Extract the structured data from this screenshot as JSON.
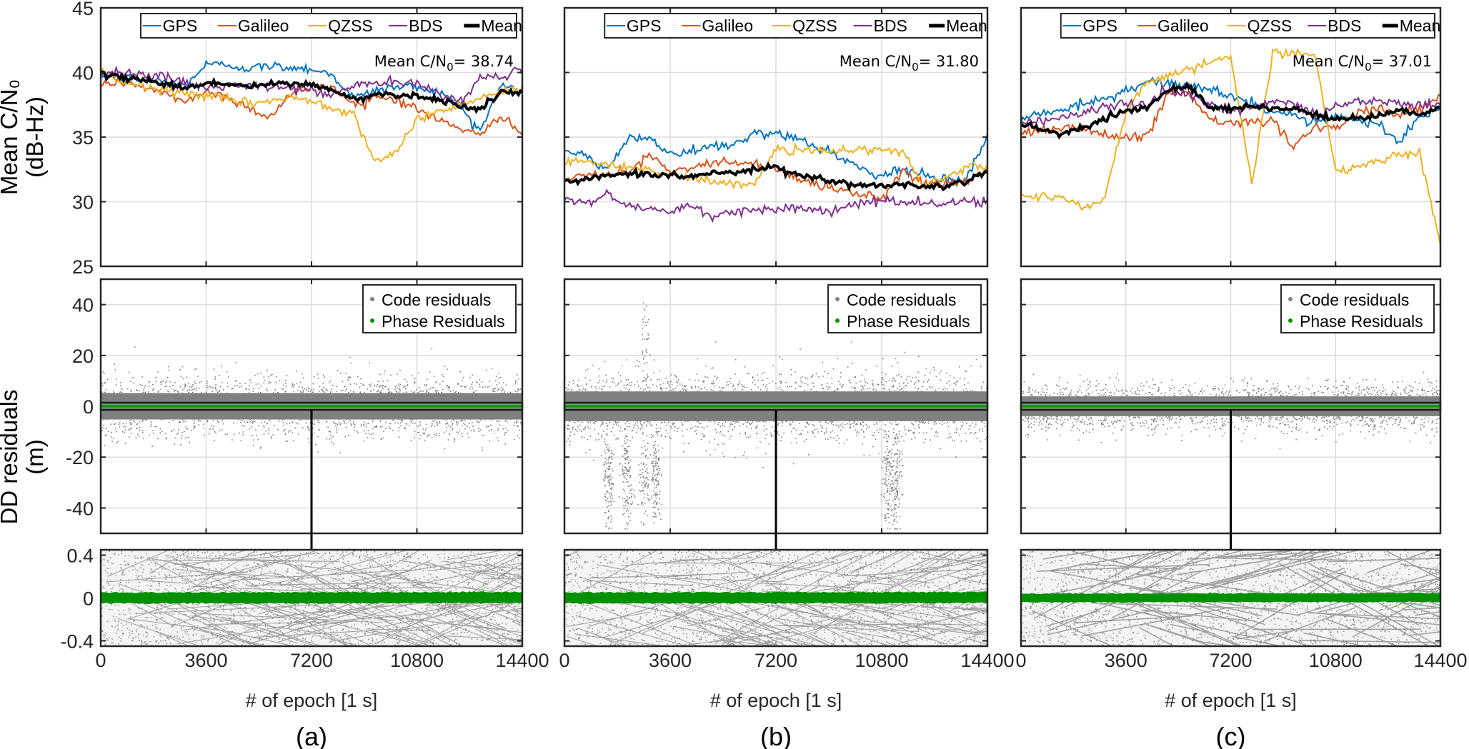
{
  "figure": {
    "ylabel_top": [
      "Mean C/N₀",
      "(dB-Hz)"
    ],
    "ylabel_mid": [
      "DD residuals",
      "(m)"
    ]
  },
  "chart_data": [
    {
      "type": "line",
      "panel": "(a)",
      "title": "",
      "xlabel": "# of epoch [1 s]",
      "ylabel": "Mean C/N0 (dB-Hz)",
      "xlim": [
        0,
        14400
      ],
      "ylim": [
        25,
        45
      ],
      "xticks": [
        "0",
        "3600",
        "7200",
        "10800",
        "14400"
      ],
      "yticks": [
        "25",
        "30",
        "35",
        "40",
        "45"
      ],
      "grid": true,
      "legend": {
        "placement": "top-right",
        "entries": [
          "GPS",
          "Galileo",
          "QZSS",
          "BDS",
          "Mean"
        ]
      },
      "annotation": {
        "prefix": "Mean C/N",
        "sub": "0",
        "suffix": "= 38.74"
      },
      "x": [
        0,
        720,
        1440,
        2160,
        2880,
        3600,
        4320,
        5040,
        5760,
        6480,
        7200,
        7920,
        8640,
        9360,
        10080,
        10800,
        11520,
        12240,
        12960,
        13680,
        14400
      ],
      "series": [
        {
          "name": "GPS",
          "color": "#0072BD",
          "values": [
            39.8,
            39.6,
            39.4,
            39.3,
            39.0,
            40.6,
            40.6,
            40.3,
            40.5,
            40.4,
            40.3,
            39.8,
            38.0,
            38.6,
            38.9,
            38.9,
            38.5,
            37.5,
            35.5,
            39.0,
            38.6
          ]
        },
        {
          "name": "Galileo",
          "color": "#D95319",
          "values": [
            39.0,
            39.3,
            38.9,
            38.3,
            37.8,
            38.5,
            38.1,
            37.3,
            36.5,
            38.3,
            38.9,
            38.9,
            37.5,
            38.2,
            37.9,
            37.2,
            36.3,
            35.8,
            35.0,
            36.8,
            35.2
          ]
        },
        {
          "name": "QZSS",
          "color": "#EDB120",
          "values": [
            39.9,
            39.3,
            38.9,
            38.6,
            38.4,
            38.2,
            37.9,
            37.6,
            37.8,
            38.0,
            37.9,
            37.3,
            36.8,
            33.2,
            33.6,
            36.5,
            36.9,
            37.5,
            38.1,
            38.5,
            38.7
          ]
        },
        {
          "name": "BDS",
          "color": "#7E2F8E",
          "values": [
            40.2,
            40.0,
            39.9,
            39.6,
            39.2,
            38.8,
            39.0,
            38.9,
            38.9,
            38.8,
            38.6,
            38.2,
            39.0,
            39.2,
            39.2,
            39.1,
            38.5,
            37.7,
            39.5,
            39.8,
            40.1
          ]
        },
        {
          "name": "Mean",
          "color": "#000000",
          "values": [
            39.8,
            39.6,
            39.5,
            39.1,
            38.8,
            39.2,
            39.1,
            38.9,
            39.1,
            39.1,
            39.1,
            38.6,
            37.9,
            38.3,
            38.3,
            38.2,
            37.9,
            37.5,
            37.1,
            38.5,
            38.3
          ]
        }
      ]
    },
    {
      "type": "line",
      "panel": "(b)",
      "title": "",
      "xlabel": "# of epoch [1 s]",
      "ylabel": "Mean C/N0 (dB-Hz)",
      "xlim": [
        0,
        14400
      ],
      "ylim": [
        25,
        45
      ],
      "xticks": [
        "0",
        "3600",
        "7200",
        "10800",
        "14400"
      ],
      "yticks": [
        "25",
        "30",
        "35",
        "40",
        "45"
      ],
      "grid": true,
      "legend": {
        "placement": "top-right",
        "entries": [
          "GPS",
          "Galileo",
          "QZSS",
          "BDS",
          "Mean"
        ]
      },
      "annotation": {
        "prefix": "Mean C/N",
        "sub": "0",
        "suffix": "= 31.80"
      },
      "x": [
        0,
        720,
        1440,
        2160,
        2880,
        3600,
        4320,
        5040,
        5760,
        6480,
        7200,
        7920,
        8640,
        9360,
        10080,
        10800,
        11520,
        12240,
        12960,
        13680,
        14400
      ],
      "series": [
        {
          "name": "GPS",
          "color": "#0072BD",
          "values": [
            33.8,
            33.5,
            32.6,
            34.8,
            35.0,
            33.6,
            33.9,
            34.2,
            34.4,
            35.3,
            35.2,
            34.8,
            34.2,
            33.5,
            32.6,
            32.0,
            32.6,
            32.0,
            31.6,
            31.8,
            35.0
          ]
        },
        {
          "name": "Galileo",
          "color": "#D95319",
          "values": [
            31.6,
            31.9,
            32.1,
            32.2,
            33.6,
            32.4,
            32.6,
            33.2,
            33.0,
            32.9,
            32.5,
            31.8,
            31.3,
            31.0,
            30.6,
            30.3,
            32.4,
            31.4,
            31.4,
            31.5,
            32.6
          ]
        },
        {
          "name": "QZSS",
          "color": "#EDB120",
          "values": [
            33.2,
            33.1,
            32.9,
            32.7,
            32.4,
            32.0,
            31.8,
            31.6,
            31.4,
            31.3,
            34.0,
            34.0,
            34.0,
            34.0,
            34.0,
            34.0,
            33.8,
            31.2,
            31.9,
            32.6,
            33.0
          ]
        },
        {
          "name": "BDS",
          "color": "#7E2F8E",
          "values": [
            30.1,
            29.9,
            30.6,
            29.6,
            29.5,
            29.3,
            29.8,
            28.6,
            29.3,
            29.4,
            29.5,
            29.5,
            29.4,
            29.3,
            29.9,
            30.1,
            29.9,
            29.9,
            29.9,
            30.0,
            30.1
          ]
        },
        {
          "name": "Mean",
          "color": "#000000",
          "values": [
            31.6,
            31.7,
            32.0,
            32.1,
            32.2,
            32.0,
            32.0,
            32.2,
            32.3,
            32.6,
            32.6,
            32.1,
            31.8,
            31.5,
            31.3,
            31.2,
            31.4,
            31.2,
            31.3,
            31.6,
            32.4
          ]
        }
      ]
    },
    {
      "type": "line",
      "panel": "(c)",
      "title": "",
      "xlabel": "# of epoch [1 s]",
      "ylabel": "Mean C/N0 (dB-Hz)",
      "xlim": [
        0,
        14400
      ],
      "ylim": [
        25,
        45
      ],
      "xticks": [
        "0",
        "3600",
        "7200",
        "10800",
        "14400"
      ],
      "yticks": [
        "25",
        "30",
        "35",
        "40",
        "45"
      ],
      "grid": true,
      "legend": {
        "placement": "top-right",
        "entries": [
          "GPS",
          "Galileo",
          "QZSS",
          "BDS",
          "Mean"
        ]
      },
      "annotation": {
        "prefix": "Mean C/N",
        "sub": "0",
        "suffix": "= 37.01"
      },
      "x": [
        0,
        720,
        1440,
        2160,
        2880,
        3600,
        4320,
        5040,
        5760,
        6480,
        7200,
        7920,
        8640,
        9360,
        10080,
        10800,
        11520,
        12240,
        12960,
        13680,
        14400
      ],
      "series": [
        {
          "name": "GPS",
          "color": "#0072BD",
          "values": [
            36.4,
            36.9,
            37.2,
            37.5,
            38.0,
            38.6,
            39.3,
            39.2,
            39.0,
            38.7,
            38.2,
            37.6,
            37.0,
            36.7,
            36.2,
            36.5,
            36.4,
            36.0,
            34.5,
            36.5,
            37.2
          ]
        },
        {
          "name": "Galileo",
          "color": "#D95319",
          "values": [
            35.2,
            35.6,
            35.8,
            35.6,
            35.2,
            35.0,
            35.0,
            38.3,
            38.3,
            36.3,
            36.1,
            36.1,
            36.2,
            34.4,
            35.8,
            35.7,
            37.0,
            37.2,
            36.8,
            37.2,
            38.0
          ]
        },
        {
          "name": "QZSS",
          "color": "#EDB120",
          "values": [
            30.4,
            30.4,
            30.5,
            29.5,
            30.2,
            37.0,
            39.2,
            39.8,
            40.3,
            40.8,
            41.2,
            31.4,
            41.5,
            41.5,
            41.5,
            32.3,
            32.7,
            33.2,
            33.6,
            33.8,
            26.8
          ]
        },
        {
          "name": "BDS",
          "color": "#7E2F8E",
          "values": [
            36.2,
            36.3,
            36.6,
            36.9,
            37.4,
            37.6,
            37.5,
            38.7,
            38.4,
            37.6,
            37.0,
            37.2,
            37.8,
            37.6,
            36.6,
            37.4,
            37.7,
            37.7,
            37.6,
            37.5,
            37.4
          ]
        },
        {
          "name": "Mean",
          "color": "#000000",
          "values": [
            36.0,
            35.6,
            35.2,
            35.8,
            36.4,
            37.0,
            37.3,
            38.6,
            38.9,
            37.4,
            37.2,
            37.4,
            37.2,
            37.2,
            36.7,
            36.4,
            36.5,
            36.6,
            37.1,
            36.8,
            37.3
          ]
        }
      ]
    },
    {
      "type": "scatter",
      "panel": "(a)",
      "ylabel": "DD residuals (m)",
      "xlim": [
        0,
        14400
      ],
      "ylim": [
        -50,
        50
      ],
      "yticks": [
        "-40",
        "-20",
        "0",
        "20",
        "40"
      ],
      "grid": true,
      "legend": {
        "placement": "top-right",
        "entries": [
          "Code residuals",
          "Phase Residuals"
        ]
      },
      "series": [
        {
          "name": "Code residuals",
          "color": "#808080",
          "core_spread_m": 8,
          "max_abs_m": 31
        },
        {
          "name": "Phase Residuals",
          "color": "#009000",
          "core_spread_m": 0.05
        }
      ],
      "zoom_window_ylim": [
        -1,
        1
      ]
    },
    {
      "type": "scatter",
      "panel": "(b)",
      "ylabel": "DD residuals (m)",
      "xlim": [
        0,
        14400
      ],
      "ylim": [
        -50,
        50
      ],
      "yticks": [
        "-40",
        "-20",
        "0",
        "20",
        "40"
      ],
      "grid": true,
      "legend": {
        "placement": "top-right",
        "entries": [
          "Code residuals",
          "Phase Residuals"
        ]
      },
      "series": [
        {
          "name": "Code residuals",
          "color": "#808080",
          "core_spread_m": 9,
          "max_abs_m": 48,
          "outlier_bursts_epoch": [
            1500,
            2100,
            2700,
            3100,
            11000,
            11300
          ]
        },
        {
          "name": "Phase Residuals",
          "color": "#009000",
          "core_spread_m": 0.05
        }
      ],
      "zoom_window_ylim": [
        -1,
        1
      ]
    },
    {
      "type": "scatter",
      "panel": "(c)",
      "ylabel": "DD residuals (m)",
      "xlim": [
        0,
        14400
      ],
      "ylim": [
        -50,
        50
      ],
      "yticks": [
        "-40",
        "-20",
        "0",
        "20",
        "40"
      ],
      "grid": true,
      "legend": {
        "placement": "top-right",
        "entries": [
          "Code residuals",
          "Phase Residuals"
        ]
      },
      "series": [
        {
          "name": "Code residuals",
          "color": "#808080",
          "core_spread_m": 6,
          "max_abs_m": 18
        },
        {
          "name": "Phase Residuals",
          "color": "#009000",
          "core_spread_m": 0.04
        }
      ],
      "zoom_window_ylim": [
        -1,
        1
      ]
    },
    {
      "type": "scatter",
      "panel": "(a)",
      "subplot": "zoom",
      "xlabel": "# of epoch [1 s]",
      "xlim": [
        0,
        14400
      ],
      "ylim": [
        -0.45,
        0.45
      ],
      "xticks": [
        "0",
        "3600",
        "7200",
        "10800",
        "14400"
      ],
      "yticks": [
        "-0.4",
        "0",
        "0.4"
      ],
      "series": [
        {
          "name": "Code residuals",
          "color": "#808080"
        },
        {
          "name": "Phase Residuals",
          "color": "#009000",
          "core_spread_m": 0.05
        }
      ]
    },
    {
      "type": "scatter",
      "panel": "(b)",
      "subplot": "zoom",
      "xlabel": "# of epoch [1 s]",
      "xlim": [
        0,
        14400
      ],
      "ylim": [
        -0.45,
        0.45
      ],
      "xticks": [
        "0",
        "3600",
        "7200",
        "10800",
        "14400"
      ],
      "yticks": [
        "-0.4",
        "0",
        "0.4"
      ],
      "series": [
        {
          "name": "Code residuals",
          "color": "#808080"
        },
        {
          "name": "Phase Residuals",
          "color": "#009000",
          "core_spread_m": 0.05
        }
      ]
    },
    {
      "type": "scatter",
      "panel": "(c)",
      "subplot": "zoom",
      "xlabel": "# of epoch [1 s]",
      "xlim": [
        0,
        14400
      ],
      "ylim": [
        -0.45,
        0.45
      ],
      "xticks": [
        "0",
        "3600",
        "7200",
        "10800",
        "14400"
      ],
      "yticks": [
        "-0.4",
        "0",
        "0.4"
      ],
      "series": [
        {
          "name": "Code residuals",
          "color": "#808080"
        },
        {
          "name": "Phase Residuals",
          "color": "#009000",
          "core_spread_m": 0.04
        }
      ]
    }
  ]
}
